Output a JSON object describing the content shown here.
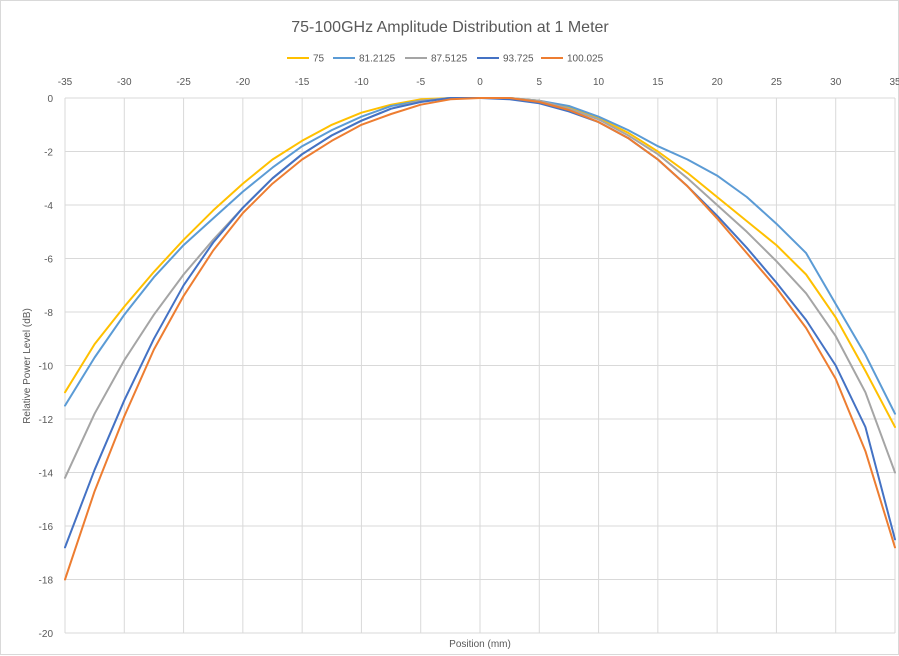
{
  "chart_data": {
    "type": "line",
    "title": "75-100GHz Amplitude Distribution at 1 Meter",
    "xlabel": "Position (mm)",
    "ylabel": "Relative Power Level (dB)",
    "xlim": [
      -35,
      35
    ],
    "ylim": [
      -20,
      0
    ],
    "x_ticks": [
      -35,
      -30,
      -25,
      -20,
      -15,
      -10,
      -5,
      0,
      5,
      10,
      15,
      20,
      25,
      30,
      35
    ],
    "y_ticks": [
      0,
      -2,
      -4,
      -6,
      -8,
      -10,
      -12,
      -14,
      -16,
      -18,
      -20
    ],
    "x_tick_labels": [
      "-35",
      "-30",
      "-25",
      "-20",
      "-15",
      "-10",
      "-5",
      "0",
      "5",
      "10",
      "15",
      "20",
      "25",
      "30",
      "35"
    ],
    "y_tick_labels": [
      "0",
      "-2",
      "-4",
      "-6",
      "-8",
      "-10",
      "-12",
      "-14",
      "-16",
      "-18",
      "-20"
    ],
    "x_axis_position": "top",
    "grid": true,
    "legend_position": "top",
    "x": [
      -35,
      -32.5,
      -30,
      -27.5,
      -25,
      -22.5,
      -20,
      -17.5,
      -15,
      -12.5,
      -10,
      -7.5,
      -5,
      -2.5,
      0,
      2.5,
      5,
      7.5,
      10,
      12.5,
      15,
      17.5,
      20,
      22.5,
      25,
      27.5,
      30,
      32.5,
      35
    ],
    "series": [
      {
        "name": "75",
        "color": "#FFC000",
        "values": [
          -11.0,
          -9.2,
          -7.8,
          -6.5,
          -5.3,
          -4.2,
          -3.2,
          -2.3,
          -1.6,
          -1.0,
          -0.55,
          -0.25,
          -0.05,
          0.0,
          0.0,
          0.0,
          -0.1,
          -0.35,
          -0.75,
          -1.3,
          -2.0,
          -2.8,
          -3.7,
          -4.6,
          -5.5,
          -6.6,
          -8.2,
          -10.2,
          -12.3
        ]
      },
      {
        "name": "81.2125",
        "color": "#5B9BD5",
        "values": [
          -11.5,
          -9.7,
          -8.1,
          -6.7,
          -5.5,
          -4.5,
          -3.5,
          -2.6,
          -1.8,
          -1.2,
          -0.7,
          -0.3,
          -0.1,
          0.0,
          0.0,
          0.0,
          -0.1,
          -0.3,
          -0.7,
          -1.2,
          -1.8,
          -2.3,
          -2.9,
          -3.7,
          -4.7,
          -5.8,
          -7.7,
          -9.6,
          -11.8
        ]
      },
      {
        "name": "87.5125",
        "color": "#A5A5A5",
        "values": [
          -14.2,
          -11.8,
          -9.8,
          -8.1,
          -6.6,
          -5.3,
          -4.1,
          -3.0,
          -2.1,
          -1.4,
          -0.85,
          -0.4,
          -0.1,
          0.0,
          0.0,
          0.0,
          -0.1,
          -0.4,
          -0.8,
          -1.4,
          -2.1,
          -3.0,
          -4.0,
          -5.0,
          -6.1,
          -7.3,
          -8.9,
          -11.0,
          -14.0
        ]
      },
      {
        "name": "93.725",
        "color": "#4472C4",
        "values": [
          -16.8,
          -13.9,
          -11.3,
          -9.0,
          -7.0,
          -5.4,
          -4.1,
          -3.0,
          -2.1,
          -1.4,
          -0.85,
          -0.4,
          -0.15,
          0.0,
          0.0,
          -0.05,
          -0.2,
          -0.5,
          -0.9,
          -1.5,
          -2.3,
          -3.3,
          -4.4,
          -5.6,
          -6.9,
          -8.3,
          -10.0,
          -12.3,
          -16.5
        ]
      },
      {
        "name": "100.025",
        "color": "#ED7D31",
        "values": [
          -18.0,
          -14.7,
          -11.9,
          -9.4,
          -7.4,
          -5.7,
          -4.3,
          -3.2,
          -2.3,
          -1.6,
          -1.0,
          -0.6,
          -0.25,
          -0.05,
          0.0,
          0.0,
          -0.15,
          -0.45,
          -0.9,
          -1.5,
          -2.3,
          -3.3,
          -4.5,
          -5.8,
          -7.1,
          -8.6,
          -10.5,
          -13.2,
          -16.8
        ]
      }
    ]
  }
}
